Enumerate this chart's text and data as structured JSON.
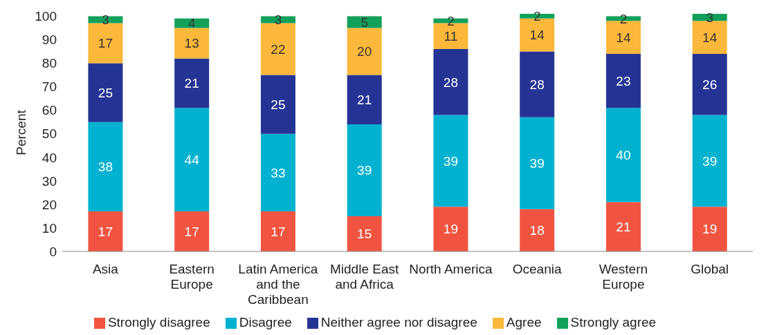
{
  "chart_data": {
    "type": "bar",
    "stacked": true,
    "ylabel": "Percent",
    "categories": [
      "Asia",
      "Eastern Europe",
      "Latin America and the Caribbean",
      "Middle East and Africa",
      "North America",
      "Oceania",
      "Western Europe",
      "Global"
    ],
    "series": [
      {
        "name": "Strongly disagree",
        "color": "#f05440",
        "values": [
          17,
          17,
          17,
          15,
          19,
          18,
          21,
          19
        ]
      },
      {
        "name": "Disagree",
        "color": "#00b2d0",
        "values": [
          38,
          44,
          33,
          39,
          39,
          39,
          40,
          39
        ]
      },
      {
        "name": "Neither agree nor disagree",
        "color": "#253494",
        "values": [
          25,
          21,
          25,
          21,
          28,
          28,
          23,
          26
        ]
      },
      {
        "name": "Agree",
        "color": "#fbb83a",
        "values": [
          17,
          13,
          22,
          20,
          11,
          14,
          14,
          14
        ]
      },
      {
        "name": "Strongly agree",
        "color": "#12a05a",
        "values": [
          3,
          4,
          3,
          5,
          2,
          2,
          2,
          3
        ]
      }
    ],
    "ylim": [
      0,
      101
    ],
    "yticks": [
      0,
      10,
      20,
      30,
      40,
      50,
      60,
      70,
      80,
      90,
      100
    ],
    "grid": false,
    "legend": "bottom",
    "data_labels": true
  }
}
